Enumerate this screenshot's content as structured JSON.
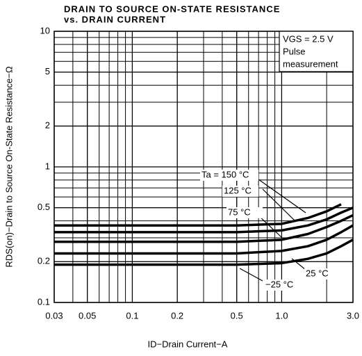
{
  "chart_data": {
    "type": "line",
    "title": "DRAIN TO SOURCE ON-STATE RESISTANCE",
    "subtitle": "vs. DRAIN CURRENT",
    "x_label": "ID−Drain Current−A",
    "y_label": "RDS(on)−Drain to Source On-State Resistance−Ω",
    "annotation": [
      "VGS = 2.5 V",
      "Pulse",
      "measurement"
    ],
    "x": [
      0.03,
      0.1,
      0.5,
      1.0,
      1.5,
      2.0,
      2.5,
      3.0
    ],
    "series": [
      {
        "name": "Ta = 150 °C",
        "color": "#000000",
        "values": [
          0.37,
          0.37,
          0.37,
          0.38,
          0.42,
          0.47,
          0.53,
          null
        ]
      },
      {
        "name": "125 °C",
        "color": "#000000",
        "values": [
          0.33,
          0.33,
          0.33,
          0.34,
          0.37,
          0.41,
          0.46,
          0.5
        ]
      },
      {
        "name": "75 °C",
        "color": "#000000",
        "values": [
          0.28,
          0.28,
          0.28,
          0.29,
          0.32,
          0.36,
          0.4,
          0.44
        ]
      },
      {
        "name": "25 °C",
        "color": "#000000",
        "values": [
          0.23,
          0.23,
          0.23,
          0.24,
          0.26,
          0.29,
          0.33,
          0.37
        ]
      },
      {
        "name": "−25 °C",
        "color": "#000000",
        "values": [
          0.19,
          0.19,
          0.19,
          0.195,
          0.21,
          0.23,
          0.26,
          0.29
        ]
      }
    ],
    "xlim": [
      0.03,
      3.0
    ],
    "ylim": [
      0.1,
      10
    ],
    "xticks": [
      0.03,
      0.05,
      0.1,
      0.2,
      0.5,
      {
        "value": 1,
        "label": "1.0"
      },
      {
        "value": 3,
        "label": "3.0"
      }
    ],
    "yticks": [
      0.1,
      0.2,
      0.5,
      1,
      2,
      5,
      10
    ],
    "xscale": "log",
    "yscale": "log",
    "grid": true
  }
}
